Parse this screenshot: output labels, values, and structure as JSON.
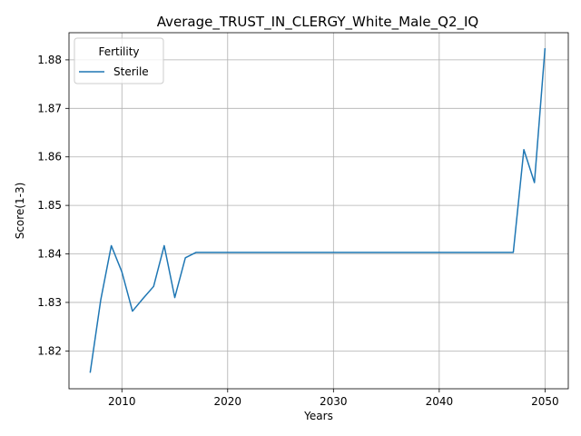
{
  "chart_data": {
    "type": "line",
    "title": "Average_TRUST_IN_CLERGY_White_Male_Q2_IQ",
    "xlabel": "Years",
    "ylabel": "Score(1-3)",
    "xlim": [
      2005.0,
      2052.2
    ],
    "ylim": [
      1.8122,
      1.8856
    ],
    "xticks": [
      2010,
      2020,
      2030,
      2040,
      2050
    ],
    "yticks": [
      1.82,
      1.83,
      1.84,
      1.85,
      1.86,
      1.87,
      1.88
    ],
    "ytick_labels": [
      "1.82",
      "1.83",
      "1.84",
      "1.85",
      "1.86",
      "1.87",
      "1.88"
    ],
    "grid": true,
    "legend": {
      "title": "Fertility",
      "placement": "top-left"
    },
    "series": [
      {
        "name": "Sterile",
        "color": "#1f77b4",
        "x": [
          2007,
          2008,
          2009,
          2010,
          2011,
          2012,
          2013,
          2014,
          2015,
          2016,
          2017,
          2018,
          2019,
          2020,
          2021,
          2022,
          2023,
          2024,
          2025,
          2026,
          2027,
          2028,
          2029,
          2030,
          2031,
          2032,
          2033,
          2034,
          2035,
          2036,
          2037,
          2038,
          2039,
          2040,
          2041,
          2042,
          2043,
          2044,
          2045,
          2046,
          2047,
          2048,
          2049,
          2050
        ],
        "values": [
          1.8155,
          1.8305,
          1.8417,
          1.8363,
          1.8282,
          1.8308,
          1.8333,
          1.8417,
          1.831,
          1.8392,
          1.8403,
          1.8403,
          1.8403,
          1.8403,
          1.8403,
          1.8403,
          1.8403,
          1.8403,
          1.8403,
          1.8403,
          1.8403,
          1.8403,
          1.8403,
          1.8403,
          1.8403,
          1.8403,
          1.8403,
          1.8403,
          1.8403,
          1.8403,
          1.8403,
          1.8403,
          1.8403,
          1.8403,
          1.8403,
          1.8403,
          1.8403,
          1.8403,
          1.8403,
          1.8403,
          1.8403,
          1.8615,
          1.8547,
          1.8824
        ]
      }
    ]
  }
}
